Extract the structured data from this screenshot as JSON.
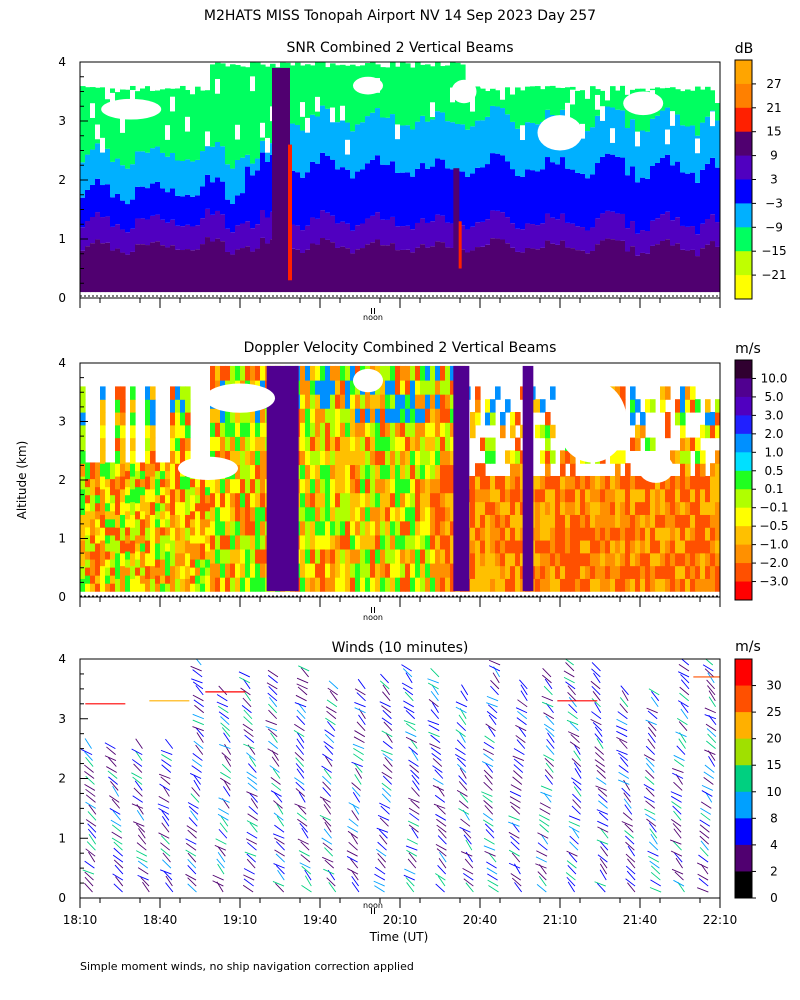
{
  "figure": {
    "title": "M2HATS MISS Tonopah Airport NV  14 Sep 2023 Day 257",
    "ylabel": "Altitude (km)",
    "xlabel": "Time (UT)",
    "noon_label": "noon",
    "footnote": "Simple moment winds, no ship navigation correction applied"
  },
  "chart_data": [
    {
      "type": "heatmap",
      "title": "SNR Combined 2 Vertical Beams",
      "units": "dB",
      "y_ticks": [
        "0",
        "1",
        "2",
        "3",
        "4"
      ],
      "ylim": [
        0,
        4
      ],
      "x_range_hours": [
        18.1667,
        22.1667
      ],
      "colorbar": {
        "labels": [
          "27",
          "21",
          "15",
          "9",
          "3",
          "−3",
          "−9",
          "−15",
          "−21"
        ],
        "colors": [
          "#ffa500",
          "#ff8000",
          "#ff2000",
          "#500070",
          "#5000c0",
          "#0000ff",
          "#00b0ff",
          "#00ff60",
          "#c0ff00",
          "#ffff00"
        ]
      },
      "zones": [
        {
          "alt_min_km": 0.1,
          "alt_max_km": 0.5,
          "level_db": 12
        },
        {
          "alt_min_km": 0.5,
          "alt_max_km": 1.3,
          "level_db": 6
        },
        {
          "alt_min_km": 1.3,
          "alt_max_km": 2.2,
          "level_db": -6
        },
        {
          "alt_min_km": 2.2,
          "alt_max_km": 3.5,
          "level_db": -15
        }
      ]
    },
    {
      "type": "heatmap",
      "title": "Doppler Velocity Combined 2 Vertical Beams",
      "units": "m/s",
      "y_ticks": [
        "0",
        "1",
        "2",
        "3",
        "4"
      ],
      "ylim": [
        0,
        4
      ],
      "x_range_hours": [
        18.1667,
        22.1667
      ],
      "colorbar": {
        "labels": [
          "10.0",
          "5.0",
          "3.0",
          "2.0",
          "1.0",
          "0.5",
          "0.1",
          "−0.1",
          "−0.5",
          "−1.0",
          "−2.0",
          "−3.0"
        ],
        "colors": [
          "#300030",
          "#500090",
          "#5000c0",
          "#2020ff",
          "#0090ff",
          "#00e0ff",
          "#20ff20",
          "#b0ff00",
          "#ffff00",
          "#ffc000",
          "#ff9000",
          "#ff5000",
          "#ff0000"
        ]
      },
      "updrafts": [
        {
          "start": "19:20",
          "end": "19:32",
          "velocity_ms": 5.0
        },
        {
          "start": "20:30",
          "end": "20:36",
          "velocity_ms": 5.0
        },
        {
          "start": "20:56",
          "end": "21:00",
          "velocity_ms": 5.0
        }
      ]
    },
    {
      "type": "wind-barbs",
      "title": "Winds (10 minutes)",
      "units": "m/s",
      "averaging_minutes": 10,
      "y_ticks": [
        "0",
        "1",
        "2",
        "3",
        "4"
      ],
      "ylim": [
        0,
        4
      ],
      "x_ticks": [
        "18:10",
        "18:40",
        "19:10",
        "19:40",
        "20:10",
        "20:40",
        "21:10",
        "21:40",
        "22:10"
      ],
      "colorbar": {
        "labels": [
          "30",
          "25",
          "20",
          "15",
          "10",
          "8",
          "4",
          "2",
          "0"
        ],
        "colors": [
          "#ff0000",
          "#ff5000",
          "#ffb000",
          "#a0e000",
          "#00d080",
          "#00a0ff",
          "#0000ff",
          "#500070",
          "#000000"
        ]
      }
    }
  ]
}
